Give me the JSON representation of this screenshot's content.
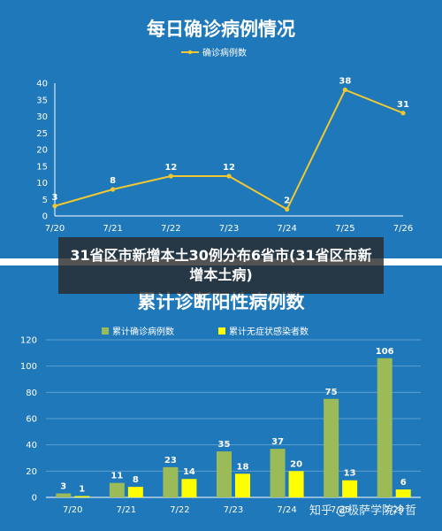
{
  "overlay_caption": "31省区市新增本土30例分布6省市(31省区市新增本土病)",
  "watermark": "知乎 @极萨学院冷哲",
  "colors": {
    "background": "#1f78b9",
    "line": "#f2c832",
    "bar_confirmed": "#9bbb59",
    "bar_asymptomatic": "#ffff00",
    "grid": "#5f9fcf",
    "text": "#ffffff"
  },
  "chart_data": [
    {
      "type": "line",
      "title": "每日确诊病例情况",
      "categories": [
        "7/20",
        "7/21",
        "7/22",
        "7/23",
        "7/24",
        "7/25",
        "7/26"
      ],
      "series": [
        {
          "name": "确诊病例数",
          "values": [
            3,
            8,
            12,
            12,
            2,
            38,
            31
          ]
        }
      ],
      "ylim": [
        0,
        40
      ],
      "yticks": [
        0,
        5,
        10,
        15,
        20,
        25,
        30,
        35,
        40
      ],
      "legend": "top",
      "grid": false
    },
    {
      "type": "bar",
      "title": "累计诊断阳性病例数",
      "categories": [
        "7/20",
        "7/21",
        "7/22",
        "7/23",
        "7/24",
        "7/25",
        "7/26"
      ],
      "series": [
        {
          "name": "累计确诊病例数",
          "values": [
            3,
            11,
            23,
            35,
            37,
            75,
            106
          ]
        },
        {
          "name": "累计无症状感染者数",
          "values": [
            1,
            8,
            14,
            18,
            20,
            13,
            6
          ]
        }
      ],
      "ylim": [
        0,
        120
      ],
      "yticks": [
        0,
        20,
        40,
        60,
        80,
        100,
        120
      ],
      "legend": "top",
      "grid": true
    }
  ]
}
